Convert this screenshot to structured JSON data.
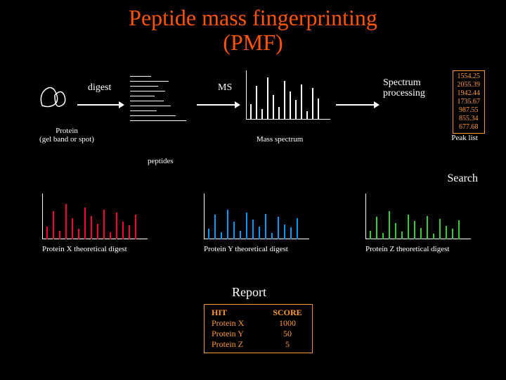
{
  "title_line1": "Peptide mass fingerprinting",
  "title_line2": "(PMF)",
  "labels": {
    "digest": "digest",
    "ms": "MS",
    "spectrum_processing_l1": "Spectrum",
    "spectrum_processing_l2": "processing",
    "protein_l1": "Protein",
    "protein_l2": "(gel band or spot)",
    "mass_spectrum": "Mass spectrum",
    "peptides": "peptides",
    "peak_list": "Peak list",
    "search": "Search",
    "protein_x": "Protein X theoretical digest",
    "protein_y": "Protein Y theoretical digest",
    "protein_z": "Protein Z theoretical digest",
    "report": "Report"
  },
  "colors": {
    "bg": "#000000",
    "title": "#ff5500",
    "text": "#ffffff",
    "accent": "#ff9933",
    "spectrum_main": "#ffffff",
    "spectrum_x": "#ff0033",
    "spectrum_y": "#0099ff",
    "spectrum_z": "#33cc33"
  },
  "peptide_line_widths": [
    30,
    55,
    40,
    50,
    35,
    48,
    58,
    38,
    65,
    80
  ],
  "mass_spectrum": {
    "heights": [
      22,
      48,
      15,
      60,
      35,
      18,
      55,
      40,
      28,
      50,
      12,
      45,
      30
    ],
    "width": 110,
    "height": 65
  },
  "small_spectra": {
    "x": {
      "heights": [
        18,
        40,
        12,
        50,
        30,
        15,
        45,
        33,
        22,
        42,
        10,
        38,
        25,
        20,
        35
      ],
      "color": "#ff0033"
    },
    "y": {
      "heights": [
        15,
        35,
        10,
        42,
        25,
        12,
        38,
        28,
        18,
        36,
        9,
        32,
        21,
        17,
        30
      ],
      "color": "#0099ff"
    },
    "z": {
      "heights": [
        12,
        32,
        9,
        40,
        23,
        11,
        35,
        26,
        16,
        33,
        8,
        29,
        19,
        15,
        27
      ],
      "color": "#33cc33"
    }
  },
  "peak_list_values": [
    "1554.25",
    "2055.39",
    "1942.44",
    "1735.67",
    "987.55",
    "855.34",
    "677.68"
  ],
  "report": {
    "header": [
      "HIT",
      "SCORE"
    ],
    "rows": [
      [
        "Protein X",
        "1000"
      ],
      [
        "Protein Y",
        "50"
      ],
      [
        "Protein Z",
        "5"
      ]
    ]
  }
}
